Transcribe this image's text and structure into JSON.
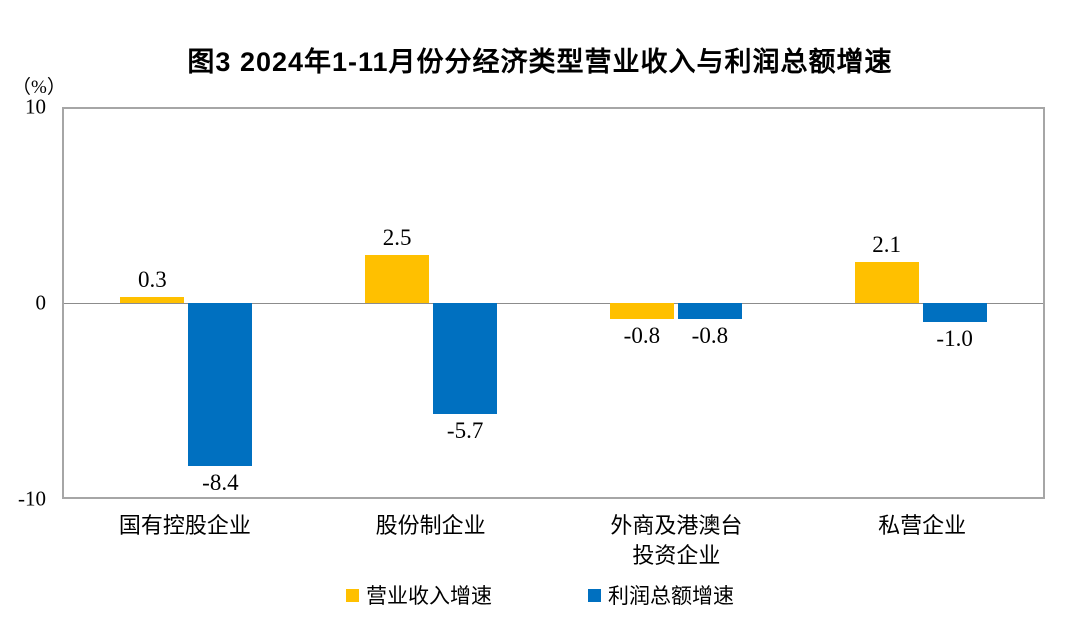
{
  "chart_data": {
    "type": "bar",
    "title": "图3  2024年1-11月份分经济类型营业收入与利润总额增速",
    "unit_label": "（%）",
    "categories": [
      "国有控股企业",
      "股份制企业",
      "外商及港澳台投资企业",
      "私营企业"
    ],
    "category_display": [
      "国有控股企业",
      "股份制企业",
      "外商及港澳台\n投资企业",
      "私营企业"
    ],
    "series": [
      {
        "name": "营业收入增速",
        "color": "#FFC000",
        "values": [
          0.3,
          2.5,
          -0.8,
          2.1
        ],
        "value_labels": [
          "0.3",
          "2.5",
          "-0.8",
          "2.1"
        ]
      },
      {
        "name": "利润总额增速",
        "color": "#0070C0",
        "values": [
          -8.4,
          -5.7,
          -0.8,
          -1.0
        ],
        "value_labels": [
          "-8.4",
          "-5.7",
          "-0.8",
          "-1.0"
        ]
      }
    ],
    "y_axis": {
      "min": -10,
      "max": 10,
      "tick_labels": [
        "10",
        "0",
        "-10"
      ]
    },
    "legend_position": "bottom",
    "grid": "zero-line-only",
    "colors": {
      "plot_border": "#A6A6A6",
      "zero_line": "#8C8C8C",
      "text": "#000000"
    }
  }
}
